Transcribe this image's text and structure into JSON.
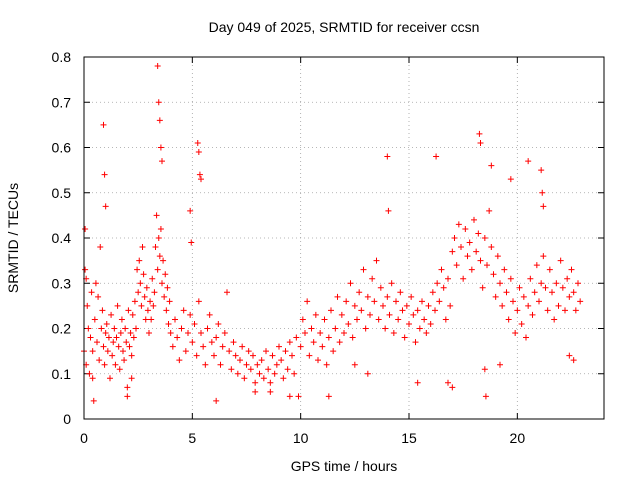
{
  "chart_data": {
    "type": "scatter",
    "title": "Day 049 of 2025, SRMTID for receiver ccsn",
    "xlabel": "GPS time / hours",
    "ylabel": "SRMTID / TECUs",
    "xlim": [
      0,
      24
    ],
    "ylim": [
      0,
      0.8
    ],
    "xticks": [
      0,
      5,
      10,
      15,
      20
    ],
    "yticks": [
      0,
      0.1,
      0.2,
      0.3,
      0.4,
      0.5,
      0.6,
      0.7,
      0.8
    ],
    "xtick_labels": [
      "0",
      "5",
      "10",
      "15",
      "20"
    ],
    "ytick_labels": [
      "0",
      "0.1",
      "0.2",
      "0.3",
      "0.4",
      "0.5",
      "0.6",
      "0.7",
      "0.8"
    ],
    "grid": true,
    "marker": "+",
    "color": "#ff0000",
    "series": [
      {
        "name": "SRMTID",
        "x": [
          0.0,
          0.05,
          0.1,
          0.15,
          0.2,
          0.25,
          0.3,
          0.35,
          0.4,
          0.45,
          0.5,
          0.55,
          0.6,
          0.65,
          0.7,
          0.75,
          0.8,
          0.85,
          0.9,
          0.95,
          1.0,
          1.05,
          1.1,
          1.15,
          1.2,
          1.25,
          1.3,
          1.35,
          1.4,
          1.45,
          1.5,
          1.55,
          1.6,
          1.65,
          1.7,
          1.75,
          1.8,
          1.85,
          1.9,
          1.95,
          2.0,
          2.05,
          2.1,
          2.15,
          2.2,
          2.25,
          2.3,
          2.35,
          2.4,
          2.45,
          2.5,
          2.55,
          2.6,
          2.65,
          2.7,
          2.75,
          2.8,
          2.85,
          2.9,
          2.95,
          3.0,
          3.05,
          3.1,
          3.15,
          3.2,
          3.25,
          3.3,
          3.35,
          3.4,
          3.45,
          3.5,
          3.55,
          3.6,
          3.65,
          3.7,
          3.75,
          3.8,
          3.85,
          3.9,
          3.95,
          4.0,
          4.1,
          4.2,
          4.3,
          4.4,
          4.5,
          4.6,
          4.7,
          4.8,
          4.9,
          5.0,
          5.1,
          5.2,
          5.3,
          5.4,
          5.5,
          5.6,
          5.7,
          5.8,
          5.9,
          6.0,
          6.1,
          6.2,
          6.3,
          6.4,
          6.5,
          6.6,
          6.7,
          6.8,
          6.9,
          7.0,
          7.1,
          7.2,
          7.3,
          7.4,
          7.5,
          7.6,
          7.7,
          7.8,
          7.9,
          8.0,
          8.1,
          8.2,
          8.3,
          8.4,
          8.5,
          8.6,
          8.7,
          8.8,
          8.9,
          9.0,
          9.1,
          9.2,
          9.3,
          9.4,
          9.5,
          9.6,
          9.7,
          9.8,
          9.9,
          10.0,
          10.1,
          10.2,
          10.3,
          10.4,
          10.5,
          10.6,
          10.7,
          10.8,
          10.9,
          11.0,
          11.1,
          11.2,
          11.3,
          11.4,
          11.5,
          11.6,
          11.7,
          11.8,
          11.9,
          12.0,
          12.1,
          12.2,
          12.3,
          12.4,
          12.5,
          12.6,
          12.7,
          12.8,
          12.9,
          13.0,
          13.1,
          13.2,
          13.3,
          13.4,
          13.5,
          13.6,
          13.7,
          13.8,
          13.9,
          14.0,
          14.1,
          14.2,
          14.3,
          14.4,
          14.5,
          14.6,
          14.7,
          14.8,
          14.9,
          15.0,
          15.1,
          15.2,
          15.3,
          15.4,
          15.5,
          15.6,
          15.7,
          15.8,
          15.9,
          16.0,
          16.1,
          16.2,
          16.3,
          16.4,
          16.5,
          16.6,
          16.7,
          16.8,
          16.9,
          17.0,
          17.1,
          17.2,
          17.3,
          17.4,
          17.5,
          17.6,
          17.7,
          17.8,
          17.9,
          18.0,
          18.1,
          18.2,
          18.3,
          18.4,
          18.5,
          18.6,
          18.7,
          18.8,
          18.9,
          19.0,
          19.1,
          19.2,
          19.3,
          19.4,
          19.5,
          19.6,
          19.7,
          19.8,
          19.9,
          20.0,
          20.1,
          20.2,
          20.3,
          20.4,
          20.5,
          20.6,
          20.7,
          20.8,
          20.9,
          21.0,
          21.1,
          21.2,
          21.3,
          21.4,
          21.5,
          21.6,
          21.7,
          21.8,
          21.9,
          22.0,
          22.1,
          22.2,
          22.3,
          22.4,
          22.5,
          22.6,
          22.7,
          22.8,
          22.9,
          3.4,
          3.45,
          3.5,
          3.55,
          3.6,
          5.25,
          5.3,
          5.35,
          5.4,
          0.9,
          0.95,
          14.0,
          14.05,
          16.25,
          18.25,
          18.3,
          18.8,
          19.7,
          20.5,
          21.1,
          21.15,
          21.2,
          1.0,
          4.9,
          4.95,
          18.5,
          18.55,
          9.5,
          6.1,
          0.4,
          2.0,
          2.2,
          7.9,
          8.6,
          11.3,
          16.8,
          17.0,
          12.5,
          13.1,
          15.4,
          19.2,
          22.4,
          22.6,
          0.05,
          0.1
        ],
        "y": [
          0.15,
          0.33,
          0.12,
          0.25,
          0.2,
          0.1,
          0.18,
          0.28,
          0.15,
          0.04,
          0.22,
          0.3,
          0.17,
          0.27,
          0.13,
          0.38,
          0.2,
          0.24,
          0.16,
          0.12,
          0.19,
          0.21,
          0.15,
          0.18,
          0.09,
          0.23,
          0.14,
          0.17,
          0.2,
          0.12,
          0.18,
          0.25,
          0.16,
          0.11,
          0.19,
          0.22,
          0.15,
          0.13,
          0.2,
          0.17,
          0.07,
          0.24,
          0.16,
          0.19,
          0.14,
          0.23,
          0.18,
          0.26,
          0.2,
          0.33,
          0.28,
          0.35,
          0.3,
          0.25,
          0.38,
          0.32,
          0.27,
          0.22,
          0.29,
          0.24,
          0.19,
          0.26,
          0.22,
          0.31,
          0.25,
          0.28,
          0.38,
          0.45,
          0.33,
          0.4,
          0.36,
          0.42,
          0.3,
          0.35,
          0.27,
          0.32,
          0.24,
          0.29,
          0.21,
          0.26,
          0.19,
          0.16,
          0.22,
          0.18,
          0.13,
          0.2,
          0.24,
          0.15,
          0.19,
          0.23,
          0.17,
          0.21,
          0.14,
          0.26,
          0.19,
          0.16,
          0.12,
          0.2,
          0.23,
          0.17,
          0.14,
          0.18,
          0.21,
          0.12,
          0.16,
          0.19,
          0.28,
          0.15,
          0.11,
          0.17,
          0.14,
          0.1,
          0.13,
          0.16,
          0.09,
          0.12,
          0.15,
          0.11,
          0.14,
          0.08,
          0.12,
          0.1,
          0.13,
          0.09,
          0.15,
          0.11,
          0.08,
          0.14,
          0.1,
          0.12,
          0.16,
          0.13,
          0.09,
          0.15,
          0.11,
          0.17,
          0.14,
          0.1,
          0.18,
          0.05,
          0.16,
          0.22,
          0.19,
          0.26,
          0.14,
          0.2,
          0.17,
          0.23,
          0.13,
          0.19,
          0.16,
          0.22,
          0.12,
          0.18,
          0.24,
          0.15,
          0.2,
          0.27,
          0.17,
          0.23,
          0.19,
          0.26,
          0.21,
          0.3,
          0.18,
          0.25,
          0.22,
          0.28,
          0.24,
          0.33,
          0.2,
          0.27,
          0.23,
          0.31,
          0.26,
          0.35,
          0.22,
          0.29,
          0.25,
          0.2,
          0.27,
          0.23,
          0.3,
          0.19,
          0.26,
          0.22,
          0.28,
          0.24,
          0.18,
          0.25,
          0.21,
          0.27,
          0.23,
          0.17,
          0.24,
          0.2,
          0.26,
          0.22,
          0.19,
          0.25,
          0.21,
          0.28,
          0.24,
          0.3,
          0.26,
          0.33,
          0.29,
          0.22,
          0.31,
          0.25,
          0.37,
          0.4,
          0.34,
          0.43,
          0.38,
          0.31,
          0.42,
          0.36,
          0.39,
          0.33,
          0.44,
          0.37,
          0.41,
          0.35,
          0.29,
          0.4,
          0.34,
          0.46,
          0.38,
          0.32,
          0.27,
          0.36,
          0.3,
          0.25,
          0.33,
          0.28,
          0.22,
          0.31,
          0.26,
          0.19,
          0.24,
          0.29,
          0.21,
          0.27,
          0.18,
          0.25,
          0.31,
          0.23,
          0.28,
          0.34,
          0.26,
          0.3,
          0.36,
          0.29,
          0.24,
          0.33,
          0.28,
          0.22,
          0.3,
          0.25,
          0.35,
          0.29,
          0.24,
          0.31,
          0.27,
          0.33,
          0.28,
          0.24,
          0.3,
          0.26,
          0.78,
          0.7,
          0.66,
          0.6,
          0.57,
          0.61,
          0.59,
          0.54,
          0.53,
          0.65,
          0.54,
          0.58,
          0.46,
          0.58,
          0.63,
          0.61,
          0.56,
          0.53,
          0.57,
          0.55,
          0.5,
          0.47,
          0.47,
          0.46,
          0.39,
          0.11,
          0.05,
          0.05,
          0.04,
          0.09,
          0.05,
          0.09,
          0.06,
          0.06,
          0.05,
          0.08,
          0.07,
          0.12,
          0.1,
          0.08,
          0.12,
          0.14,
          0.13,
          0.42,
          0.31
        ]
      }
    ]
  }
}
